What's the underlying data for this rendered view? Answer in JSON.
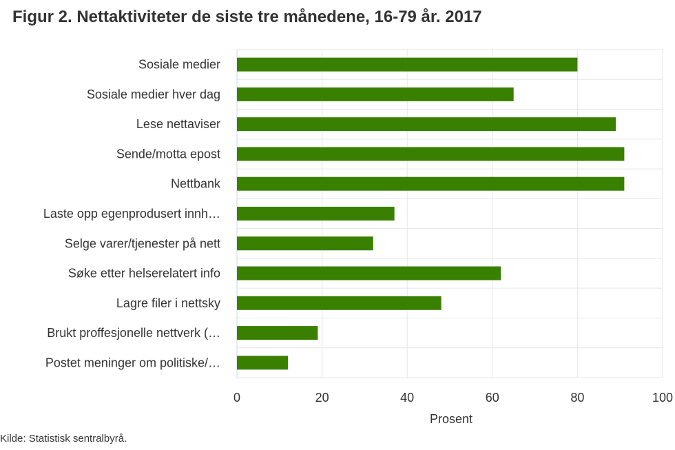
{
  "title": "Figur 2. Nettaktiviteter de siste tre månedene, 16-79 år. 2017",
  "source": "Kilde: Statistisk sentralbyrå.",
  "colors": {
    "bar": "#3a8000",
    "grid": "#e6e6e6",
    "axis": "#ccd6eb",
    "text": "#333333"
  },
  "chart_data": {
    "type": "bar",
    "orientation": "horizontal",
    "categories": [
      "Sosiale medier",
      "Sosiale medier hver dag",
      "Lese nettaviser",
      "Sende/motta epost",
      "Nettbank",
      "Laste opp egenprodusert innh…",
      "Selge varer/tjenester på nett",
      "Søke etter helserelatert info",
      "Lagre filer i nettsky",
      "Brukt proffesjonelle nettverk (…",
      "Postet meninger om politiske/…"
    ],
    "values": [
      80,
      65,
      89,
      91,
      91,
      37,
      32,
      62,
      48,
      19,
      12
    ],
    "xlabel": "Prosent",
    "xlim": [
      0,
      100
    ],
    "xticks": [
      0,
      20,
      40,
      60,
      80,
      100
    ],
    "grid": true,
    "legend": "none"
  }
}
